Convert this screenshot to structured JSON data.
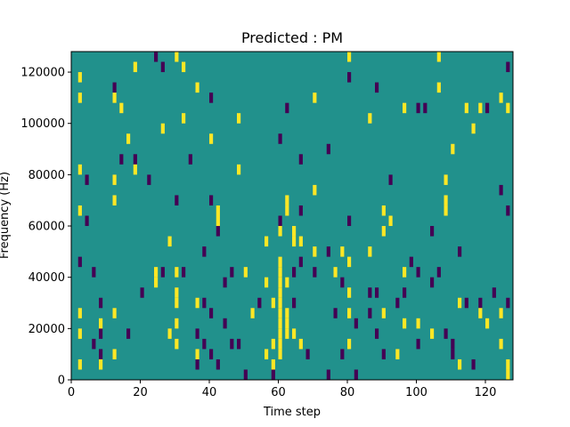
{
  "chart_data": {
    "type": "heatmap",
    "title": "Predicted : PM",
    "xlabel": "Time step",
    "ylabel": "Frequency (Hz)",
    "xlim": [
      0,
      128
    ],
    "ylim": [
      0,
      128000
    ],
    "x_ticks": [
      0,
      20,
      40,
      60,
      80,
      100,
      120
    ],
    "x_tick_labels": [
      "0",
      "20",
      "40",
      "60",
      "80",
      "100",
      "120"
    ],
    "y_ticks": [
      0,
      20000,
      40000,
      60000,
      80000,
      100000,
      120000
    ],
    "y_tick_labels": [
      "0",
      "20000",
      "40000",
      "60000",
      "80000",
      "100000",
      "120000"
    ],
    "grid": false,
    "colormap": "viridis",
    "colors": {
      "background": "#21918c",
      "high": "#fde725",
      "low": "#440154"
    },
    "bin_height_hz": 4000,
    "high_cells": [
      [
        2,
        116000
      ],
      [
        2,
        108000
      ],
      [
        2,
        80000
      ],
      [
        2,
        64000
      ],
      [
        2,
        24000
      ],
      [
        2,
        16000
      ],
      [
        2,
        4000
      ],
      [
        8,
        4000
      ],
      [
        8,
        20000
      ],
      [
        12,
        76000
      ],
      [
        12,
        68000
      ],
      [
        12,
        24000
      ],
      [
        12,
        108000
      ],
      [
        12,
        8000
      ],
      [
        14,
        104000
      ],
      [
        16,
        92000
      ],
      [
        18,
        120000
      ],
      [
        18,
        80000
      ],
      [
        24,
        36000
      ],
      [
        24,
        40000
      ],
      [
        26,
        96000
      ],
      [
        28,
        52000
      ],
      [
        28,
        16000
      ],
      [
        30,
        40000
      ],
      [
        30,
        32000
      ],
      [
        30,
        28000
      ],
      [
        30,
        20000
      ],
      [
        30,
        12000
      ],
      [
        30,
        124000
      ],
      [
        32,
        120000
      ],
      [
        32,
        100000
      ],
      [
        36,
        112000
      ],
      [
        36,
        28000
      ],
      [
        36,
        8000
      ],
      [
        40,
        92000
      ],
      [
        42,
        60000
      ],
      [
        42,
        64000
      ],
      [
        48,
        100000
      ],
      [
        48,
        80000
      ],
      [
        50,
        40000
      ],
      [
        52,
        24000
      ],
      [
        56,
        36000
      ],
      [
        56,
        52000
      ],
      [
        56,
        8000
      ],
      [
        58,
        28000
      ],
      [
        58,
        12000
      ],
      [
        58,
        4000
      ],
      [
        60,
        56000
      ],
      [
        60,
        44000
      ],
      [
        60,
        40000
      ],
      [
        60,
        36000
      ],
      [
        60,
        32000
      ],
      [
        60,
        28000
      ],
      [
        60,
        24000
      ],
      [
        60,
        20000
      ],
      [
        60,
        16000
      ],
      [
        60,
        12000
      ],
      [
        60,
        8000
      ],
      [
        62,
        68000
      ],
      [
        62,
        64000
      ],
      [
        62,
        36000
      ],
      [
        62,
        24000
      ],
      [
        62,
        20000
      ],
      [
        62,
        16000
      ],
      [
        64,
        56000
      ],
      [
        64,
        52000
      ],
      [
        64,
        16000
      ],
      [
        66,
        52000
      ],
      [
        66,
        12000
      ],
      [
        70,
        48000
      ],
      [
        70,
        108000
      ],
      [
        70,
        72000
      ],
      [
        76,
        40000
      ],
      [
        78,
        48000
      ],
      [
        80,
        44000
      ],
      [
        80,
        32000
      ],
      [
        80,
        24000
      ],
      [
        80,
        12000
      ],
      [
        80,
        124000
      ],
      [
        86,
        48000
      ],
      [
        86,
        100000
      ],
      [
        90,
        24000
      ],
      [
        90,
        64000
      ],
      [
        90,
        56000
      ],
      [
        92,
        60000
      ],
      [
        94,
        8000
      ],
      [
        96,
        40000
      ],
      [
        96,
        20000
      ],
      [
        96,
        104000
      ],
      [
        100,
        20000
      ],
      [
        104,
        16000
      ],
      [
        106,
        124000
      ],
      [
        106,
        112000
      ],
      [
        108,
        76000
      ],
      [
        108,
        68000
      ],
      [
        108,
        64000
      ],
      [
        110,
        88000
      ],
      [
        112,
        4000
      ],
      [
        112,
        28000
      ],
      [
        114,
        104000
      ],
      [
        116,
        96000
      ],
      [
        118,
        24000
      ],
      [
        118,
        104000
      ],
      [
        120,
        20000
      ],
      [
        124,
        12000
      ],
      [
        124,
        108000
      ],
      [
        124,
        24000
      ],
      [
        126,
        104000
      ],
      [
        126,
        4000
      ],
      [
        126,
        0
      ]
    ],
    "low_cells": [
      [
        2,
        44000
      ],
      [
        4,
        76000
      ],
      [
        4,
        60000
      ],
      [
        6,
        40000
      ],
      [
        6,
        12000
      ],
      [
        8,
        28000
      ],
      [
        8,
        16000
      ],
      [
        8,
        8000
      ],
      [
        12,
        112000
      ],
      [
        14,
        84000
      ],
      [
        16,
        16000
      ],
      [
        18,
        84000
      ],
      [
        20,
        32000
      ],
      [
        22,
        76000
      ],
      [
        24,
        124000
      ],
      [
        26,
        40000
      ],
      [
        30,
        68000
      ],
      [
        32,
        40000
      ],
      [
        34,
        84000
      ],
      [
        36,
        16000
      ],
      [
        36,
        4000
      ],
      [
        38,
        12000
      ],
      [
        38,
        48000
      ],
      [
        38,
        28000
      ],
      [
        40,
        8000
      ],
      [
        40,
        24000
      ],
      [
        40,
        68000
      ],
      [
        42,
        4000
      ],
      [
        42,
        56000
      ],
      [
        44,
        36000
      ],
      [
        44,
        20000
      ],
      [
        46,
        12000
      ],
      [
        46,
        40000
      ],
      [
        48,
        12000
      ],
      [
        50,
        0
      ],
      [
        54,
        28000
      ],
      [
        58,
        0
      ],
      [
        60,
        60000
      ],
      [
        62,
        104000
      ],
      [
        64,
        40000
      ],
      [
        64,
        28000
      ],
      [
        66,
        84000
      ],
      [
        66,
        64000
      ],
      [
        66,
        44000
      ],
      [
        68,
        8000
      ],
      [
        70,
        40000
      ],
      [
        74,
        48000
      ],
      [
        74,
        0
      ],
      [
        76,
        24000
      ],
      [
        78,
        36000
      ],
      [
        78,
        8000
      ],
      [
        80,
        60000
      ],
      [
        82,
        20000
      ],
      [
        82,
        0
      ],
      [
        86,
        32000
      ],
      [
        86,
        24000
      ],
      [
        88,
        16000
      ],
      [
        88,
        32000
      ],
      [
        90,
        8000
      ],
      [
        92,
        76000
      ],
      [
        94,
        28000
      ],
      [
        96,
        32000
      ],
      [
        98,
        44000
      ],
      [
        100,
        40000
      ],
      [
        100,
        12000
      ],
      [
        102,
        104000
      ],
      [
        104,
        36000
      ],
      [
        106,
        40000
      ],
      [
        108,
        16000
      ],
      [
        110,
        12000
      ],
      [
        112,
        48000
      ],
      [
        114,
        28000
      ],
      [
        116,
        4000
      ],
      [
        118,
        28000
      ],
      [
        120,
        104000
      ],
      [
        122,
        32000
      ],
      [
        124,
        72000
      ],
      [
        126,
        64000
      ],
      [
        126,
        28000
      ],
      [
        126,
        120000
      ],
      [
        110,
        8000
      ],
      [
        104,
        56000
      ],
      [
        100,
        104000
      ],
      [
        88,
        112000
      ],
      [
        80,
        116000
      ],
      [
        74,
        88000
      ],
      [
        60,
        92000
      ],
      [
        40,
        108000
      ],
      [
        26,
        120000
      ]
    ]
  }
}
